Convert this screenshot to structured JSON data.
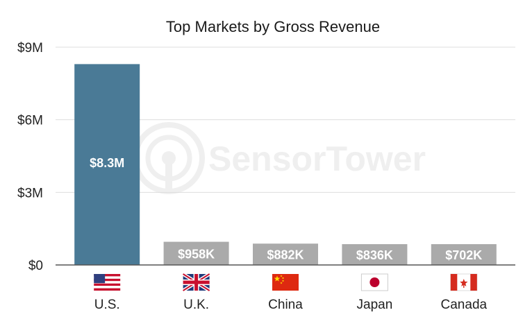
{
  "chart_data": {
    "type": "bar",
    "title": "Top Markets by Gross Revenue",
    "categories": [
      "U.S.",
      "U.K.",
      "China",
      "Japan",
      "Canada"
    ],
    "values": [
      8300000,
      958000,
      882000,
      836000,
      702000
    ],
    "value_labels": [
      "$8.3M",
      "$958K",
      "$882K",
      "$836K",
      "$702K"
    ],
    "flag_icons": [
      "us-flag-icon",
      "uk-flag-icon",
      "china-flag-icon",
      "japan-flag-icon",
      "canada-flag-icon"
    ],
    "ylim": [
      0,
      9000000
    ],
    "yticks": [
      0,
      3000000,
      6000000,
      9000000
    ],
    "ytick_labels": [
      "$0",
      "$3M",
      "$6M",
      "$9M"
    ],
    "grid": true,
    "colors": {
      "highlight": "#4a7a96",
      "other": "#aaaaaa",
      "grid": "#dddddd"
    },
    "watermark": "SensorTower"
  }
}
